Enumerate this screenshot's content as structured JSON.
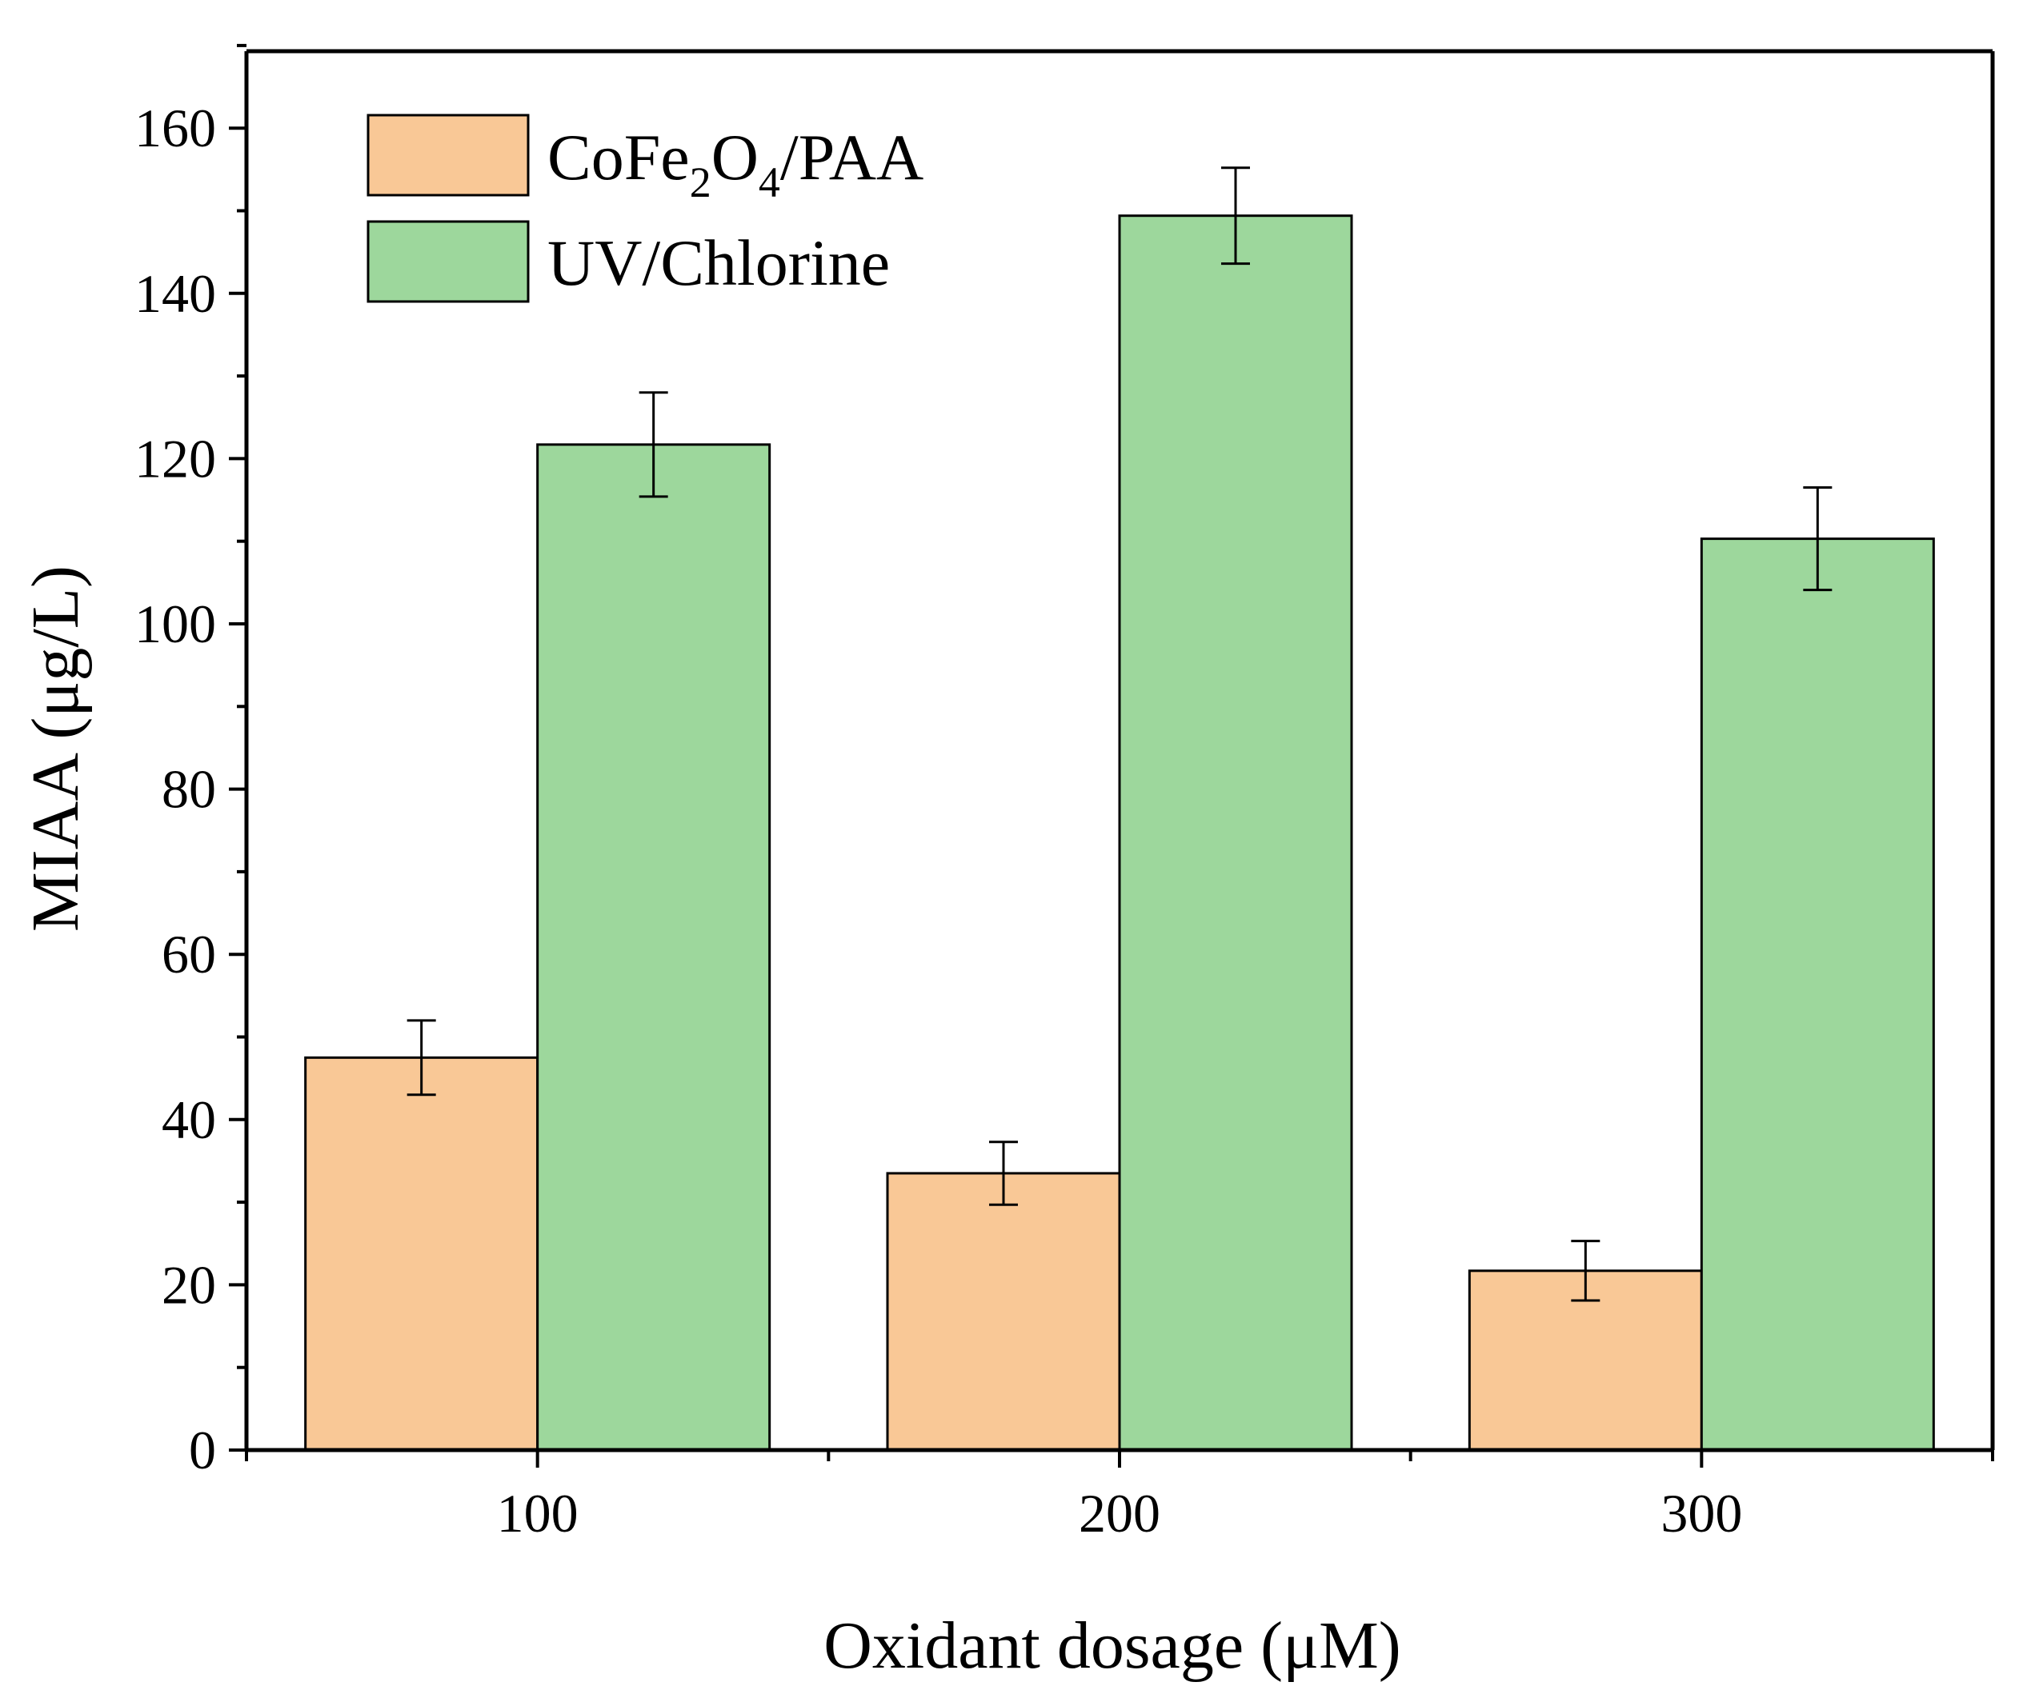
{
  "chart_data": {
    "type": "bar",
    "title": "",
    "xlabel": "Oxidant dosage (μM)",
    "ylabel": "MIAA (μg/L)",
    "categories": [
      "100",
      "200",
      "300"
    ],
    "ylim": [
      0,
      170
    ],
    "yticks": [
      0,
      20,
      40,
      60,
      80,
      100,
      120,
      140,
      160
    ],
    "grid": false,
    "legend_position": "top-left",
    "series": [
      {
        "name": "CoFe2O4/PAA",
        "legend_parts": {
          "base": "CoFe",
          "sub1": "2",
          "mid": "O",
          "sub2": "4",
          "tail": "/PAA"
        },
        "color": "#F9C896",
        "values": [
          47.5,
          33.5,
          21.7
        ],
        "errors": [
          4.5,
          3.8,
          3.6
        ]
      },
      {
        "name": "UV/Chlorine",
        "color": "#9DD79C",
        "values": [
          121.7,
          149.4,
          110.3
        ],
        "errors": [
          6.3,
          5.8,
          6.2
        ]
      }
    ]
  }
}
